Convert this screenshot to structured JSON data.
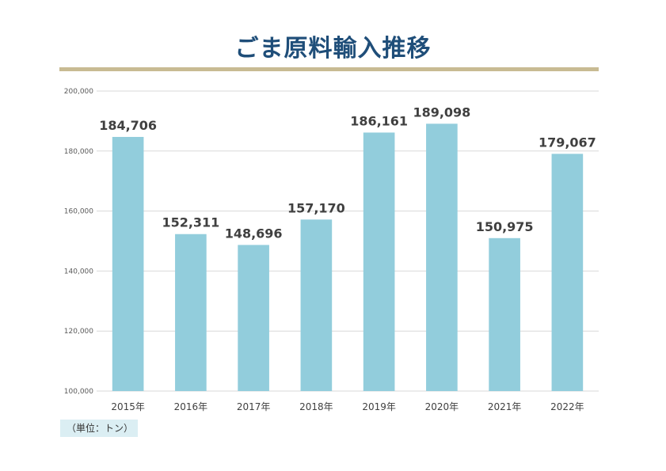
{
  "chart_data": {
    "type": "bar",
    "title": "ごま原料輸入推移",
    "categories": [
      "2015年",
      "2016年",
      "2017年",
      "2018年",
      "2019年",
      "2020年",
      "2021年",
      "2022年"
    ],
    "values": [
      184706,
      152311,
      148696,
      157170,
      186161,
      189098,
      150975,
      179067
    ],
    "value_labels": [
      "184,706",
      "152,311",
      "148,696",
      "157,170",
      "186,161",
      "189,098",
      "150,975",
      "179,067"
    ],
    "ylim": [
      100000,
      200000
    ],
    "yticks": [
      100000,
      120000,
      140000,
      160000,
      180000,
      200000
    ],
    "ytick_labels": [
      "100,000",
      "120,000",
      "140,000",
      "160,000",
      "180,000",
      "200,000"
    ],
    "grid": true,
    "bar_color": "#92cddc",
    "unit_note": "（単位：トン）"
  },
  "colors": {
    "title": "#1f4e79",
    "rule": "#c8bb93",
    "grid": "#d9d9d9",
    "label": "#404040",
    "unit_bg": "#dbeef3"
  }
}
